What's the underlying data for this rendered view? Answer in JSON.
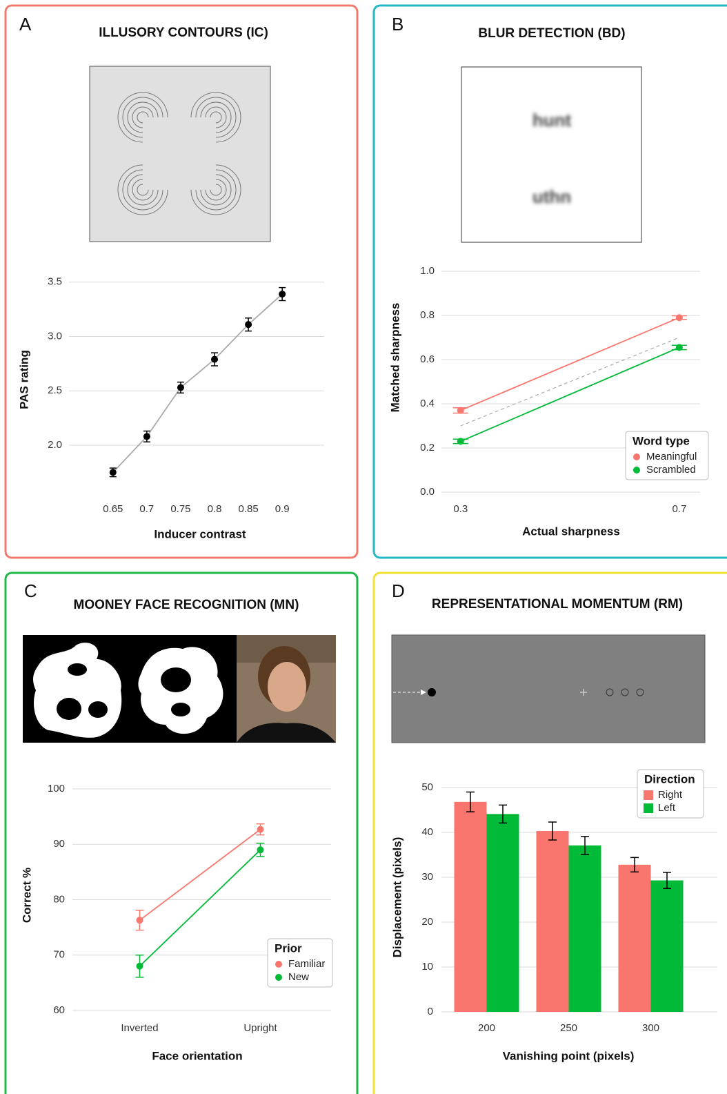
{
  "chart_data": [
    {
      "type": "line",
      "panel": "A",
      "title": "ILLUSORY CONTOURS (IC)",
      "x_label": "Inducer contrast",
      "y_label": "PAS rating",
      "x": [
        0.65,
        0.7,
        0.75,
        0.8,
        0.85,
        0.9
      ],
      "xlim": [
        0.585,
        0.962
      ],
      "xticks": [
        0.65,
        0.7,
        0.75,
        0.8,
        0.85,
        0.9
      ],
      "ylim": [
        1.6,
        3.6
      ],
      "yticks": [
        {
          "value": 2,
          "label": "2.0"
        },
        2.5,
        {
          "value": 3,
          "label": "3.0"
        },
        3.5
      ],
      "grid": true,
      "series": [
        {
          "color": "#000000",
          "line_color": "#aaaaaa",
          "values": [
            1.75,
            2.08,
            2.53,
            2.79,
            3.11,
            3.39
          ],
          "errors": [
            0.04,
            0.05,
            0.05,
            0.06,
            0.06,
            0.06
          ]
        }
      ]
    },
    {
      "type": "line",
      "panel": "B",
      "title": "BLUR DETECTION (BD)",
      "x_label": "Actual sharpness",
      "y_label": "Matched sharpness",
      "stimulus_words": [
        "hunt",
        "uthn"
      ],
      "x": [
        0.3,
        0.7
      ],
      "xlim": [
        0.265,
        0.738
      ],
      "xticks": [
        0.3,
        0.7
      ],
      "ylim": [
        0,
        1
      ],
      "yticks": [
        {
          "value": 0,
          "label": "0.0"
        },
        0.2,
        0.4,
        0.6,
        0.8,
        {
          "value": 1,
          "label": "1.0"
        }
      ],
      "grid": true,
      "identity_line": true,
      "legend_title": "Word type",
      "legend": "lower right",
      "series": [
        {
          "name": "Meaningful",
          "color": "#f8766d",
          "values": [
            0.37,
            0.79
          ],
          "errors": [
            0.012,
            0.008
          ]
        },
        {
          "name": "Scrambled",
          "color": "#00ba38",
          "values": [
            0.23,
            0.655
          ],
          "errors": [
            0.01,
            0.01
          ]
        }
      ]
    },
    {
      "type": "line",
      "panel": "C",
      "title": "MOONEY FACE RECOGNITION (MN)",
      "x_label": "Face orientation",
      "y_label": "Correct %",
      "categories": [
        "Inverted",
        "Upright"
      ],
      "ylim": [
        58,
        102
      ],
      "yticks": [
        60,
        70,
        80,
        90,
        100
      ],
      "grid": true,
      "legend_title": "Prior",
      "legend": "lower right",
      "series": [
        {
          "name": "Familiar",
          "color": "#f8766d",
          "values": [
            76.3,
            92.7
          ],
          "errors": [
            1.8,
            1.0
          ]
        },
        {
          "name": "New",
          "color": "#00ba38",
          "values": [
            68,
            89
          ],
          "errors": [
            2.0,
            1.2
          ]
        }
      ]
    },
    {
      "type": "bar",
      "panel": "D",
      "title": "REPRESENTATIONAL MOMENTUM (RM)",
      "x_label": "Vanishing point (pixels)",
      "y_label": "Displacement (pixels)",
      "categories": [
        "200",
        "250",
        "300"
      ],
      "ylim": [
        0,
        55
      ],
      "yticks": [
        0,
        10,
        20,
        30,
        40,
        50
      ],
      "grid": true,
      "legend_title": "Direction",
      "legend": "upper right",
      "series": [
        {
          "name": "Right",
          "color": "#f8766d",
          "values": [
            46.8,
            40.3,
            32.8
          ],
          "errors": [
            2.2,
            2.0,
            1.6
          ]
        },
        {
          "name": "Left",
          "color": "#00ba38",
          "values": [
            44.1,
            37.1,
            29.3
          ],
          "errors": [
            2.0,
            2.0,
            1.8
          ]
        }
      ]
    }
  ]
}
